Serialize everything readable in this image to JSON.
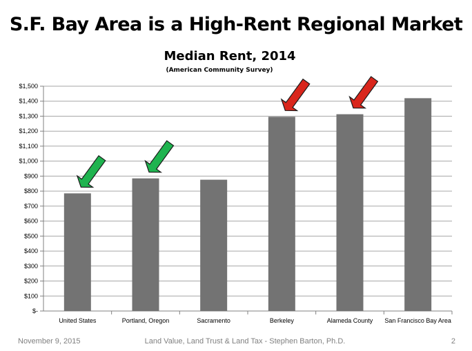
{
  "slide": {
    "title": "S.F. Bay Area is a High-Rent Regional Market"
  },
  "footer": {
    "date": "November 9, 2015",
    "center": "Land Value, Land Trust & Land Tax - Stephen Barton, Ph.D.",
    "page": "2"
  },
  "chart_data": {
    "type": "bar",
    "title": "Median Rent, 2014",
    "subtitle": "(American Community Survey)",
    "xlabel": "",
    "ylabel": "",
    "ylim": [
      0,
      1500
    ],
    "y_ticks": [
      0,
      100,
      200,
      300,
      400,
      500,
      600,
      700,
      800,
      900,
      1000,
      1100,
      1200,
      1300,
      1400,
      1500
    ],
    "y_tick_labels": [
      "$-",
      "$100",
      "$200",
      "$300",
      "$400",
      "$500",
      "$600",
      "$700",
      "$800",
      "$900",
      "$1,000",
      "$1,100",
      "$1,200",
      "$1,300",
      "$1,400",
      "$1,500"
    ],
    "grid": true,
    "legend": "none",
    "bar_color": "#737373",
    "categories": [
      "United States",
      "Portland, Oregon",
      "Sacramento",
      "Berkeley",
      "Alameda County",
      "San Francisco Bay Area"
    ],
    "values": [
      785,
      885,
      876,
      1296,
      1313,
      1420
    ],
    "arrows": [
      {
        "category": "United States",
        "color": "#1fb34f",
        "meaning": "low"
      },
      {
        "category": "Portland, Oregon",
        "color": "#1fb34f",
        "meaning": "low"
      },
      {
        "category": "Berkeley",
        "color": "#d9261c",
        "meaning": "high"
      },
      {
        "category": "Alameda County",
        "color": "#d9261c",
        "meaning": "high"
      }
    ]
  }
}
